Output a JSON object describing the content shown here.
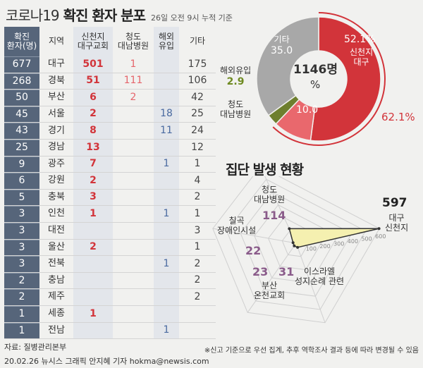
{
  "header": {
    "title_main": "코로나19",
    "title_bold": "확진 환자 분포",
    "subtitle": "26일 오전 9시 누적 기준"
  },
  "table": {
    "headers": [
      "확진\n환자(명)",
      "지역",
      "신천지\n대구교회",
      "청도\n대남병원",
      "해외\n유입",
      "기타"
    ],
    "rows": [
      [
        "677",
        "대구",
        "501",
        "1",
        "",
        "175"
      ],
      [
        "268",
        "경북",
        "51",
        "111",
        "",
        "106"
      ],
      [
        "50",
        "부산",
        "6",
        "2",
        "",
        "42"
      ],
      [
        "45",
        "서울",
        "2",
        "",
        "18",
        "25"
      ],
      [
        "43",
        "경기",
        "8",
        "",
        "11",
        "24"
      ],
      [
        "25",
        "경남",
        "13",
        "",
        "",
        "12"
      ],
      [
        "9",
        "광주",
        "7",
        "",
        "1",
        "1"
      ],
      [
        "6",
        "강원",
        "2",
        "",
        "",
        "4"
      ],
      [
        "5",
        "충북",
        "3",
        "",
        "",
        "2"
      ],
      [
        "3",
        "인천",
        "1",
        "",
        "1",
        "1"
      ],
      [
        "3",
        "대전",
        "",
        "",
        "",
        "3"
      ],
      [
        "3",
        "울산",
        "2",
        "",
        "",
        "1"
      ],
      [
        "3",
        "전북",
        "",
        "",
        "1",
        "2"
      ],
      [
        "2",
        "충남",
        "",
        "",
        "",
        "2"
      ],
      [
        "2",
        "제주",
        "",
        "",
        "",
        "2"
      ],
      [
        "1",
        "세종",
        "1",
        "",
        "",
        ""
      ],
      [
        "1",
        "전남",
        "",
        "",
        "1",
        ""
      ]
    ]
  },
  "chart_data": [
    {
      "type": "pie",
      "center_label": "1146명",
      "center_unit": "%",
      "slices": [
        {
          "label": "신천지\n대구",
          "value": 52.1,
          "color": "#d2343a"
        },
        {
          "label": "청도\n대남병원",
          "value": 10.0,
          "color": "#e9686d"
        },
        {
          "label": "해외유입",
          "value": 2.9,
          "color": "#6e7f2e"
        },
        {
          "label": "기타",
          "value": 35.0,
          "color": "#a8a8a8"
        }
      ],
      "outer_ring_label": "62.1%"
    },
    {
      "type": "radar",
      "title": "집단 발생 현황",
      "axis_ticks": [
        100,
        200,
        300,
        400,
        500,
        600
      ],
      "categories": [
        "대구\n신천지",
        "청도\n대남병원",
        "칠곡\n장애인시설",
        "부산\n온천교회",
        "이스라엘\n성지순례 관련"
      ],
      "values": [
        597,
        114,
        22,
        23,
        31
      ],
      "color": "#f5f0b0"
    }
  ],
  "labels": {
    "pie_gita": "기타",
    "pie_gita_val": "35.0",
    "pie_overseas": "해외유입",
    "pie_overseas_val": "2.9",
    "pie_cheongdo": "청도\n대남병원",
    "pie_cheongdo_val": "10.0",
    "pie_shin_val": "52.1%",
    "pie_shin": "신천지\n대구",
    "pie_ring": "62.1%",
    "radar_597": "597",
    "radar_daegu": "대구\n신천지",
    "radar_cheongdo": "청도\n대남병원",
    "radar_114": "114",
    "radar_chilgok": "칠곡\n장애인시설",
    "radar_22": "22",
    "radar_23": "23",
    "radar_31": "31",
    "radar_busan": "부산\n온천교회",
    "radar_israel": "이스라엘\n성지순례 관련"
  },
  "footer": {
    "source": "자료: 질병관리본부",
    "credit": "20.02.26 뉴시스 그래픽 안지혜 기자 hokma@newsis.com",
    "note": "※신고 기준으로 우선 집계, 추후 역학조사 결과 등에 따라 변경될 수 있음"
  }
}
